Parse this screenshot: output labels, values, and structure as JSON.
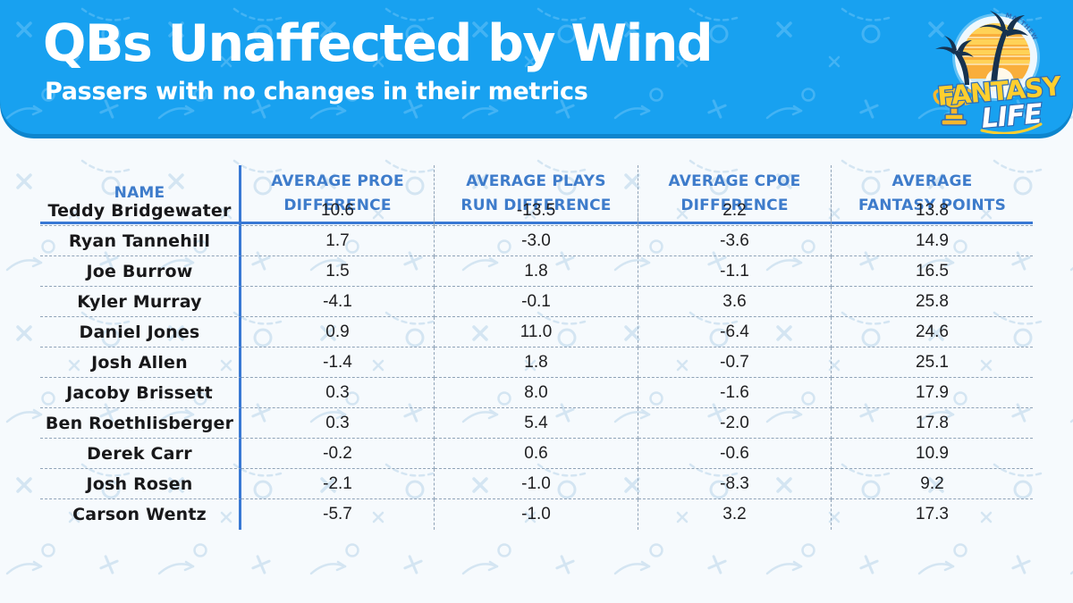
{
  "banner": {
    "title": "QBs Unaffected by Wind",
    "subtitle": "Passers with no changes in their metrics",
    "background_color": "#18A1F0",
    "shadow_color": "#0D85CD",
    "text_color": "#FFFFFF"
  },
  "logo": {
    "arc_text": "MATTHEW BERRY'S",
    "word_top": "FANTASY",
    "word_bottom": "LIFE",
    "colors": {
      "fantasy_yellow": "#FFCF2E",
      "outline_blue": "#2F6DB5",
      "palm_navy": "#16324F",
      "trophy_gold": "#F8B62D"
    }
  },
  "table": {
    "accent_line_color": "#3878D4",
    "header_text_color": "#3E7CCB",
    "dashed_line_color": "#8FA3B8",
    "columns": [
      {
        "key": "name",
        "label": "NAME"
      },
      {
        "key": "proe",
        "label": "AVERAGE PROE DIFFERENCE"
      },
      {
        "key": "plays",
        "label": "AVERAGE PLAYS RUN DIFFERENCE"
      },
      {
        "key": "cpoe",
        "label": "AVERAGE CPOE DIFFERENCE"
      },
      {
        "key": "fpts",
        "label": "AVERAGE FANTASY POINTS"
      }
    ],
    "rows": [
      {
        "name": "Teddy Bridgewater",
        "proe": "10.6",
        "plays": "-13.5",
        "cpoe": "2.2",
        "fpts": "13.8"
      },
      {
        "name": "Ryan Tannehill",
        "proe": "1.7",
        "plays": "-3.0",
        "cpoe": "-3.6",
        "fpts": "14.9"
      },
      {
        "name": "Joe Burrow",
        "proe": "1.5",
        "plays": "1.8",
        "cpoe": "-1.1",
        "fpts": "16.5"
      },
      {
        "name": "Kyler Murray",
        "proe": "-4.1",
        "plays": "-0.1",
        "cpoe": "3.6",
        "fpts": "25.8"
      },
      {
        "name": "Daniel Jones",
        "proe": "0.9",
        "plays": "11.0",
        "cpoe": "-6.4",
        "fpts": "24.6"
      },
      {
        "name": "Josh Allen",
        "proe": "-1.4",
        "plays": "1.8",
        "cpoe": "-0.7",
        "fpts": "25.1"
      },
      {
        "name": "Jacoby Brissett",
        "proe": "0.3",
        "plays": "8.0",
        "cpoe": "-1.6",
        "fpts": "17.9"
      },
      {
        "name": "Ben Roethlisberger",
        "proe": "0.3",
        "plays": "5.4",
        "cpoe": "-2.0",
        "fpts": "17.8"
      },
      {
        "name": "Derek Carr",
        "proe": "-0.2",
        "plays": "0.6",
        "cpoe": "-0.6",
        "fpts": "10.9"
      },
      {
        "name": "Josh Rosen",
        "proe": "-2.1",
        "plays": "-1.0",
        "cpoe": "-8.3",
        "fpts": "9.2"
      },
      {
        "name": "Carson Wentz",
        "proe": "-5.7",
        "plays": "-1.0",
        "cpoe": "3.2",
        "fpts": "17.3"
      }
    ]
  },
  "chart_data": {
    "type": "table",
    "title": "QBs Unaffected by Wind",
    "subtitle": "Passers with no changes in their metrics",
    "columns": [
      "NAME",
      "AVERAGE PROE DIFFERENCE",
      "AVERAGE PLAYS RUN DIFFERENCE",
      "AVERAGE CPOE DIFFERENCE",
      "AVERAGE FANTASY POINTS"
    ],
    "rows": [
      [
        "Teddy Bridgewater",
        10.6,
        -13.5,
        2.2,
        13.8
      ],
      [
        "Ryan Tannehill",
        1.7,
        -3.0,
        -3.6,
        14.9
      ],
      [
        "Joe Burrow",
        1.5,
        1.8,
        -1.1,
        16.5
      ],
      [
        "Kyler Murray",
        -4.1,
        -0.1,
        3.6,
        25.8
      ],
      [
        "Daniel Jones",
        0.9,
        11.0,
        -6.4,
        24.6
      ],
      [
        "Josh Allen",
        -1.4,
        1.8,
        -0.7,
        25.1
      ],
      [
        "Jacoby Brissett",
        0.3,
        8.0,
        -1.6,
        17.9
      ],
      [
        "Ben Roethlisberger",
        0.3,
        5.4,
        -2.0,
        17.8
      ],
      [
        "Derek Carr",
        -0.2,
        0.6,
        -0.6,
        10.9
      ],
      [
        "Josh Rosen",
        -2.1,
        -1.0,
        -8.3,
        9.2
      ],
      [
        "Carson Wentz",
        -5.7,
        -1.0,
        3.2,
        17.3
      ]
    ]
  }
}
